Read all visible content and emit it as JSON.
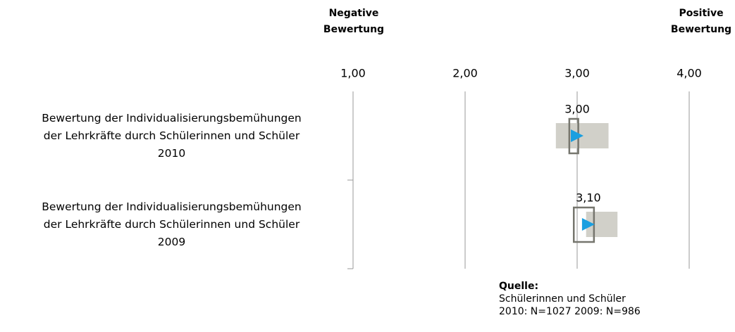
{
  "chart_data": {
    "type": "range",
    "left_header": "Negative\nBewertung",
    "right_header": "Positive\nBewertung",
    "categories": [
      "Bewertung der Individualisierungsbemühungen\nder Lehrkräfte durch Schülerinnen und Schüler\n2010",
      "Bewertung der Individualisierungsbemühungen\nder Lehrkräfte durch Schülerinnen und Schüler\n2009"
    ],
    "values": [
      3.0,
      3.1
    ],
    "value_labels": [
      "3,00",
      "3,10"
    ],
    "bar_low": [
      2.81,
      3.08
    ],
    "bar_high": [
      3.28,
      3.36
    ],
    "box_low": [
      2.93,
      2.97
    ],
    "box_high": [
      3.01,
      3.15
    ],
    "bar_color": "#d1d0c9",
    "box_color": "#76766e",
    "marker_color": "#1a9fe0",
    "xlim": [
      1,
      4
    ],
    "xticks": [
      {
        "value": 1,
        "label": "1,00"
      },
      {
        "value": 2,
        "label": "2,00"
      },
      {
        "value": 3,
        "label": "3,00"
      },
      {
        "value": 4,
        "label": "4,00"
      }
    ],
    "grid": true,
    "source_title": "Quelle:",
    "source_text": "Schülerinnen und Schüler\n2010: N=1027 2009: N=986"
  }
}
